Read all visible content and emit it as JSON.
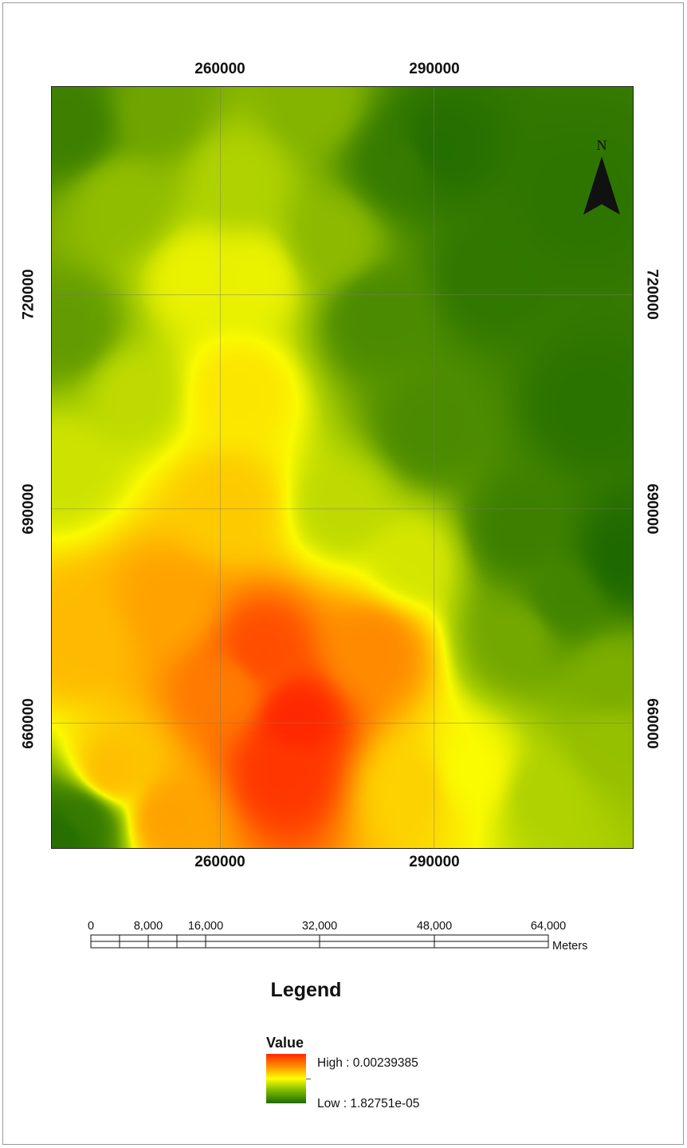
{
  "map": {
    "grid_x_labels": [
      "260000",
      "290000"
    ],
    "grid_y_labels": [
      "720000",
      "690000",
      "660000"
    ],
    "north_label": "N"
  },
  "scale_bar": {
    "tick_labels": [
      "0",
      "8,000",
      "16,000",
      "32,000",
      "48,000",
      "64,000"
    ],
    "unit": "Meters"
  },
  "legend": {
    "title": "Legend",
    "heading": "Value",
    "high_label": "High : 0.00239385",
    "low_label": "Low : 1.82751e-05",
    "ramp_colors": [
      "#ff2a00",
      "#ff8c00",
      "#ffff00",
      "#7ab800",
      "#1f6a00"
    ]
  }
}
